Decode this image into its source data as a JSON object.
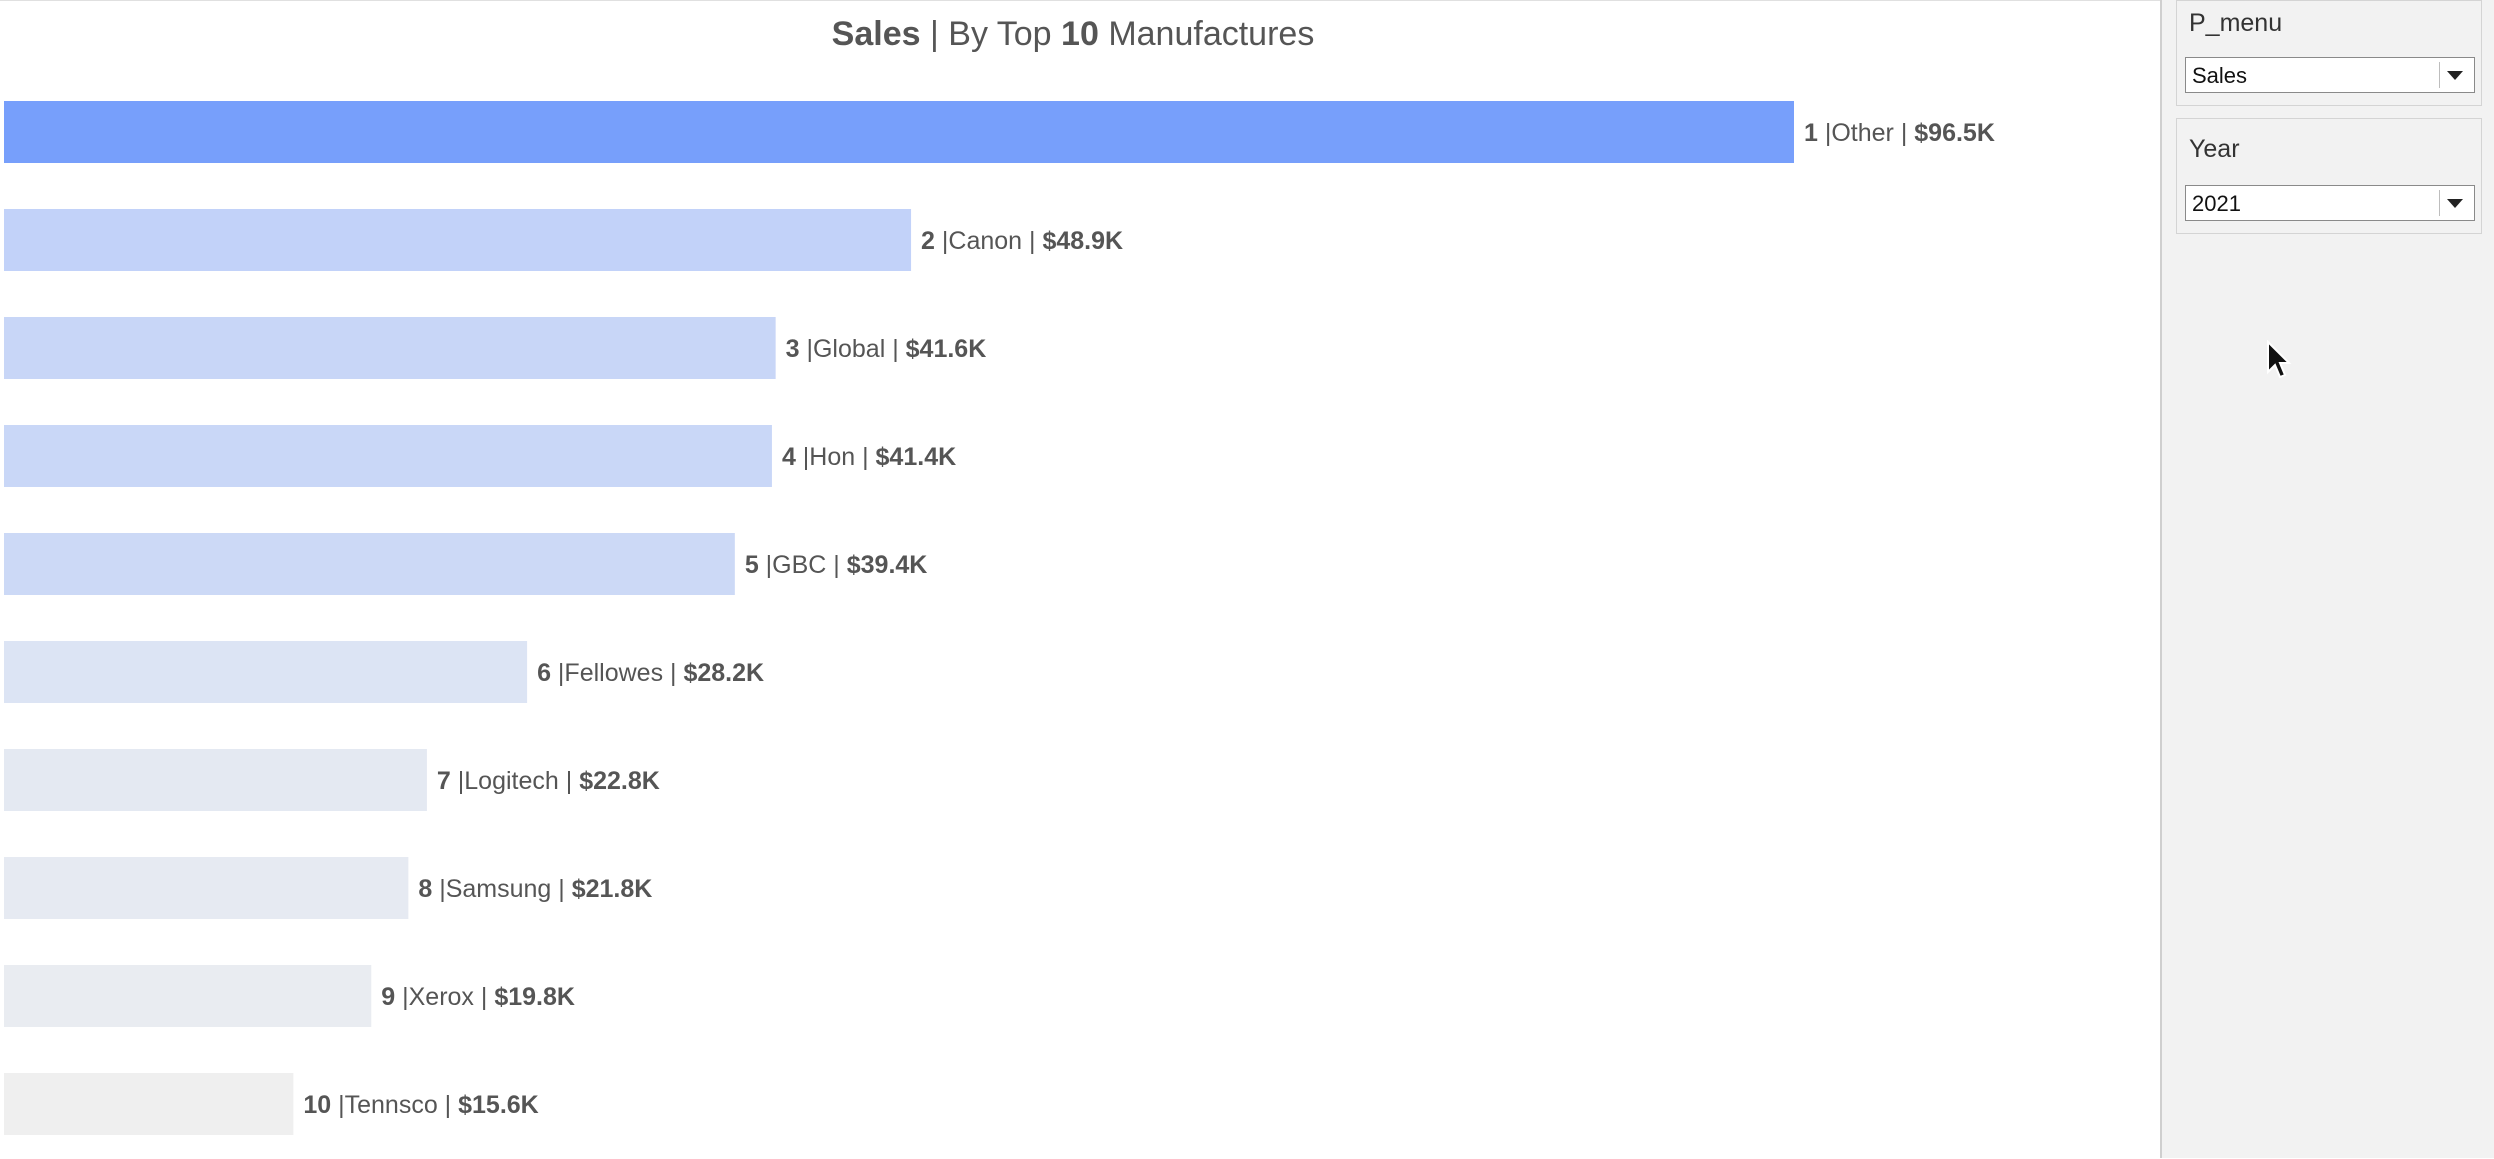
{
  "chart_data": {
    "type": "bar",
    "orientation": "horizontal",
    "title": {
      "measure": "Sales",
      "prefix": "| By Top",
      "count": "10",
      "suffix": "Manufactures"
    },
    "xlim": [
      0,
      120
    ],
    "grid": false,
    "legend": "none",
    "bars": [
      {
        "rank": "1",
        "name": "Other",
        "value": 96.5,
        "label": "$96.5K",
        "color": "#779ffb"
      },
      {
        "rank": "2",
        "name": "Canon",
        "value": 48.9,
        "label": "$48.9K",
        "color": "#c2d2f9"
      },
      {
        "rank": "3",
        "name": "Global",
        "value": 41.6,
        "label": "$41.6K",
        "color": "#c8d6f7"
      },
      {
        "rank": "4",
        "name": "Hon",
        "value": 41.4,
        "label": "$41.4K",
        "color": "#c9d7f7"
      },
      {
        "rank": "5",
        "name": "GBC",
        "value": 39.4,
        "label": "$39.4K",
        "color": "#ccd9f6"
      },
      {
        "rank": "6",
        "name": "Fellowes",
        "value": 28.2,
        "label": "$28.2K",
        "color": "#dce4f4"
      },
      {
        "rank": "7",
        "name": "Logitech",
        "value": 22.8,
        "label": "$22.8K",
        "color": "#e4e9f2"
      },
      {
        "rank": "8",
        "name": "Samsung",
        "value": 21.8,
        "label": "$21.8K",
        "color": "#e6eaf2"
      },
      {
        "rank": "9",
        "name": "Xerox",
        "value": 19.8,
        "label": "$19.8K",
        "color": "#e9ecf1"
      },
      {
        "rank": "10",
        "name": "Tennsco",
        "value": 15.6,
        "label": "$15.6K",
        "color": "#efefef"
      }
    ]
  },
  "panel": {
    "p_menu": {
      "label": "P_menu",
      "value": "Sales"
    },
    "year": {
      "label": "Year",
      "value": "2021"
    }
  }
}
